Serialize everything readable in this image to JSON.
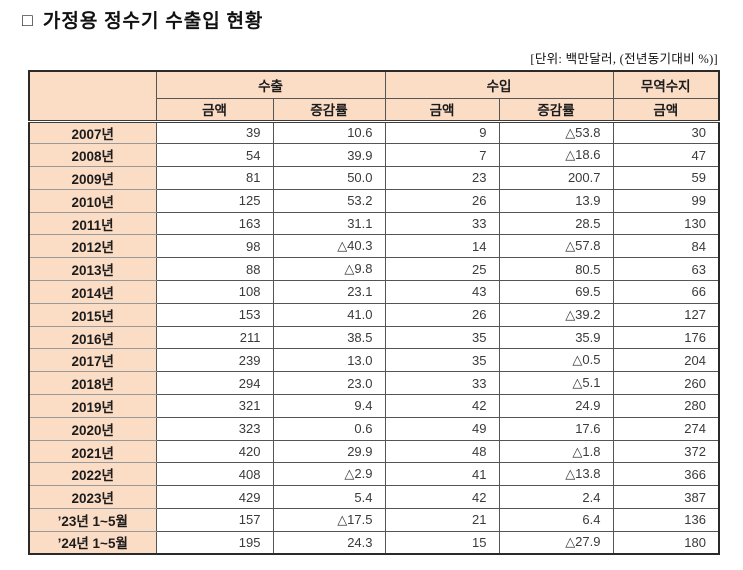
{
  "title": {
    "checkbox": "□",
    "text": "가정용 정수기 수출입 현황"
  },
  "unit_note": "[단위: 백만달러, (전년동기대비 %)]",
  "colors": {
    "header_fill": "#fbdcc5",
    "outer_border": "#2a2a2a",
    "inner_vertical_border": "#555555",
    "inner_horizontal_border": "#999999",
    "text": "#333333"
  },
  "table": {
    "group_headers": {
      "export": "수출",
      "import": "수입",
      "balance": "무역수지"
    },
    "sub_headers": {
      "export_amount": "금액",
      "export_growth": "증감률",
      "import_amount": "금액",
      "import_growth": "증감률",
      "balance_amount": "금액"
    },
    "col_keys": [
      "export-amount",
      "export-growth",
      "import-amount",
      "import-growth",
      "balance-amount"
    ],
    "rows": [
      {
        "period": "2007년",
        "values": [
          "39",
          "10.6",
          "9",
          "△53.8",
          "30"
        ]
      },
      {
        "period": "2008년",
        "values": [
          "54",
          "39.9",
          "7",
          "△18.6",
          "47"
        ]
      },
      {
        "period": "2009년",
        "values": [
          "81",
          "50.0",
          "23",
          "200.7",
          "59"
        ]
      },
      {
        "period": "2010년",
        "values": [
          "125",
          "53.2",
          "26",
          "13.9",
          "99"
        ]
      },
      {
        "period": "2011년",
        "values": [
          "163",
          "31.1",
          "33",
          "28.5",
          "130"
        ]
      },
      {
        "period": "2012년",
        "values": [
          "98",
          "△40.3",
          "14",
          "△57.8",
          "84"
        ]
      },
      {
        "period": "2013년",
        "values": [
          "88",
          "△9.8",
          "25",
          "80.5",
          "63"
        ]
      },
      {
        "period": "2014년",
        "values": [
          "108",
          "23.1",
          "43",
          "69.5",
          "66"
        ]
      },
      {
        "period": "2015년",
        "values": [
          "153",
          "41.0",
          "26",
          "△39.2",
          "127"
        ]
      },
      {
        "period": "2016년",
        "values": [
          "211",
          "38.5",
          "35",
          "35.9",
          "176"
        ]
      },
      {
        "period": "2017년",
        "values": [
          "239",
          "13.0",
          "35",
          "△0.5",
          "204"
        ]
      },
      {
        "period": "2018년",
        "values": [
          "294",
          "23.0",
          "33",
          "△5.1",
          "260"
        ]
      },
      {
        "period": "2019년",
        "values": [
          "321",
          "9.4",
          "42",
          "24.9",
          "280"
        ]
      },
      {
        "period": "2020년",
        "values": [
          "323",
          "0.6",
          "49",
          "17.6",
          "274"
        ]
      },
      {
        "period": "2021년",
        "values": [
          "420",
          "29.9",
          "48",
          "△1.8",
          "372"
        ]
      },
      {
        "period": "2022년",
        "values": [
          "408",
          "△2.9",
          "41",
          "△13.8",
          "366"
        ]
      },
      {
        "period": "2023년",
        "values": [
          "429",
          "5.4",
          "42",
          "2.4",
          "387"
        ]
      },
      {
        "period": "’23년 1~5월",
        "values": [
          "157",
          "△17.5",
          "21",
          "6.4",
          "136"
        ]
      },
      {
        "period": "’24년 1~5월",
        "values": [
          "195",
          "24.3",
          "15",
          "△27.9",
          "180"
        ]
      }
    ]
  }
}
